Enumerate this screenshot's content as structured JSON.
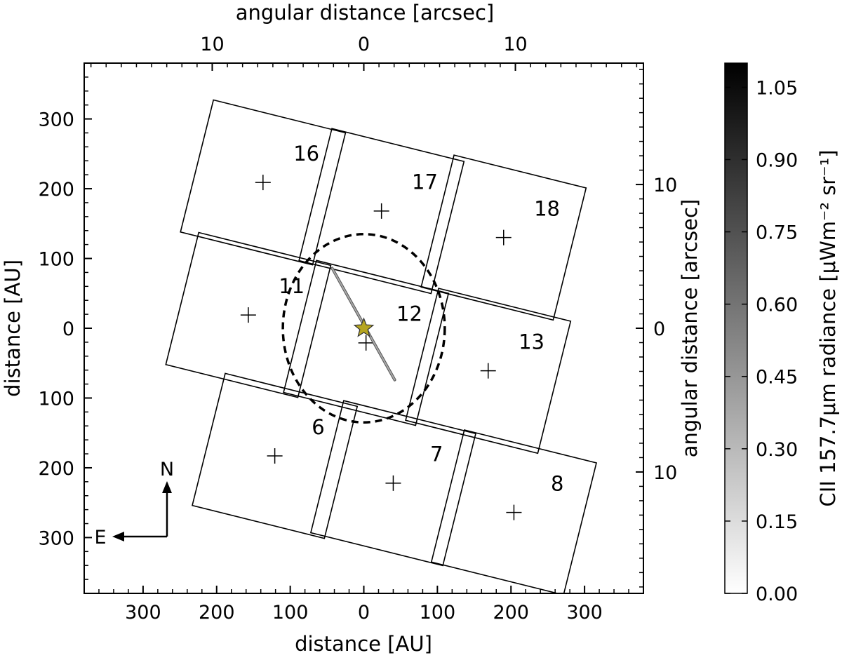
{
  "chart_data": {
    "type": "scatter",
    "title": "",
    "x_axis": {
      "label": "distance [AU]",
      "lim": [
        380,
        -380
      ],
      "ticks": [
        300,
        200,
        100,
        0,
        100,
        200,
        300
      ],
      "tick_values": [
        300,
        200,
        100,
        0,
        -100,
        -200,
        -300
      ]
    },
    "y_axis": {
      "label": "distance [AU]",
      "lim": [
        -380,
        380
      ],
      "ticks": [
        300,
        200,
        100,
        0,
        100,
        200,
        300
      ],
      "tick_values": [
        300,
        200,
        100,
        0,
        -100,
        -200,
        -300
      ]
    },
    "top_axis": {
      "label": "angular distance [arcsec]",
      "ticks": [
        "10",
        "0",
        "10"
      ],
      "tick_values": [
        10,
        0,
        -10
      ]
    },
    "right_axis": {
      "label": "angular distance [arcsec]",
      "ticks": [
        "10",
        "0",
        "10"
      ],
      "tick_values": [
        10,
        0,
        -10
      ]
    },
    "colorbar": {
      "label": "CII 157.7μm radiance [μWm⁻² sr⁻¹]",
      "range": [
        0.0,
        1.1
      ],
      "ticks": [
        "0.00",
        "0.15",
        "0.30",
        "0.45",
        "0.60",
        "0.75",
        "0.90",
        "1.05"
      ],
      "tick_values": [
        0.0,
        0.15,
        0.3,
        0.45,
        0.6,
        0.75,
        0.9,
        1.05
      ],
      "colormap": "greys"
    },
    "spaxels": [
      {
        "id": "16",
        "center": [
          137,
          209
        ]
      },
      {
        "id": "17",
        "center": [
          -24,
          168
        ]
      },
      {
        "id": "18",
        "center": [
          -190,
          130
        ]
      },
      {
        "id": "11",
        "center": [
          157,
          19
        ]
      },
      {
        "id": "12",
        "center": [
          -3,
          -21
        ]
      },
      {
        "id": "13",
        "center": [
          -169,
          -61
        ]
      },
      {
        "id": "6",
        "center": [
          121,
          -183
        ]
      },
      {
        "id": "7",
        "center": [
          -40,
          -222
        ]
      },
      {
        "id": "8",
        "center": [
          -204,
          -264
        ]
      }
    ],
    "spaxel_size_au": 185,
    "spaxel_rotation_deg": 14,
    "star": {
      "x": 0,
      "y": 0,
      "color": "#b5a520"
    },
    "disk_ellipse": {
      "cx": 0,
      "cy": 0,
      "rx": 110,
      "ry": 128,
      "style": "dashed"
    },
    "emission_line": {
      "x1": 43,
      "y1": 86,
      "x2": -42,
      "y2": -74
    },
    "compass": {
      "north": "N",
      "east": "E"
    }
  }
}
